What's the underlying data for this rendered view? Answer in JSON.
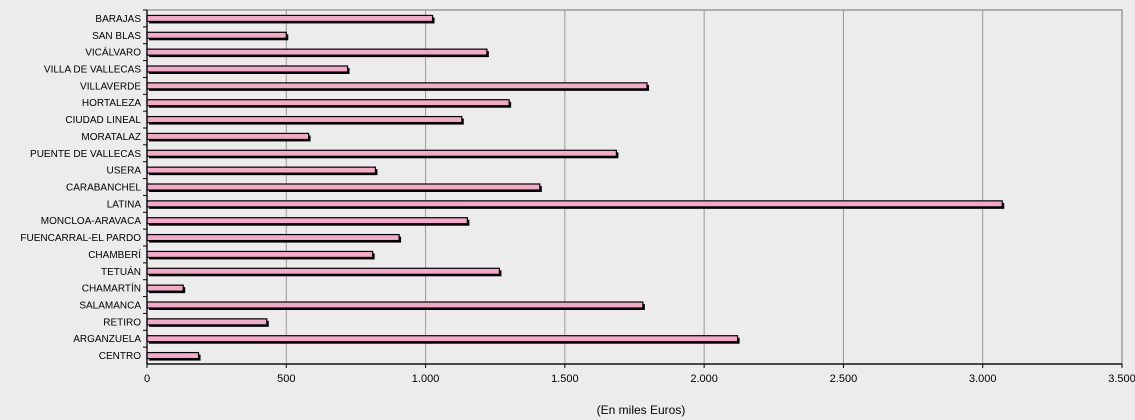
{
  "chart_data": {
    "type": "bar",
    "orientation": "horizontal",
    "categories": [
      "BARAJAS",
      "SAN BLAS",
      "VICÁLVARO",
      "VILLA DE VALLECAS",
      "VILLAVERDE",
      "HORTALEZA",
      "CIUDAD LINEAL",
      "MORATALAZ",
      "PUENTE DE VALLECAS",
      "USERA",
      "CARABANCHEL",
      "LATINA",
      "MONCLOA-ARAVACA",
      "FUENCARRAL-EL PARDO",
      "CHAMBERÍ",
      "TETUÁN",
      "CHAMARTÍN",
      "SALAMANCA",
      "RETIRO",
      "ARGANZUELA",
      "CENTRO"
    ],
    "values": [
      1025,
      500,
      1220,
      720,
      1795,
      1300,
      1130,
      580,
      1685,
      820,
      1410,
      3070,
      1150,
      905,
      810,
      1265,
      130,
      1780,
      430,
      2120,
      185
    ],
    "title": "",
    "xlabel": "(En miles Euros)",
    "ylabel": "",
    "xlim": [
      0,
      3500
    ],
    "xticks": [
      0,
      500,
      1000,
      1500,
      2000,
      2500,
      3000,
      3500
    ],
    "xtick_labels": [
      "0",
      "500",
      "1.000",
      "1.500",
      "2.000",
      "2.500",
      "3.000",
      "3.500"
    ],
    "grid": "vertical",
    "legend": "none",
    "colors": {
      "bar_fill": "#f4a9c8",
      "bar_outline": "#000000",
      "plot_background": "#ececec",
      "grid": "#999999",
      "frame": "#999999"
    }
  }
}
